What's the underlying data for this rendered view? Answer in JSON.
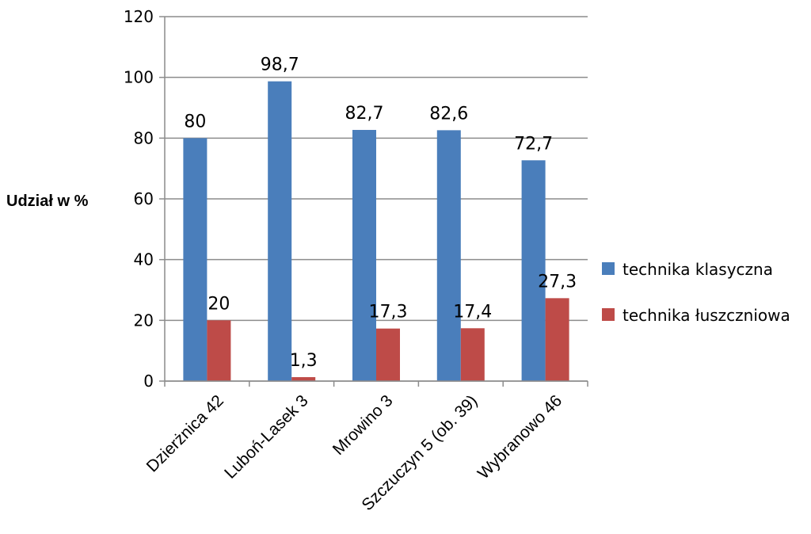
{
  "chart_data": {
    "type": "bar",
    "title": "",
    "xlabel": "",
    "ylabel": "Udział w %",
    "ylim": [
      0,
      120
    ],
    "yticks": [
      0,
      20,
      40,
      60,
      80,
      100,
      120
    ],
    "grid": true,
    "legend_position": "right",
    "categories": [
      "Dzierżnica 42",
      "Luboń-Lasek 3",
      "Mrowino 3",
      "Szczuczyn 5 (ob. 39)",
      "Wybranowo 46"
    ],
    "series": [
      {
        "name": "technika klasyczna",
        "color": "#4a7ebb",
        "values": [
          80,
          98.7,
          82.7,
          82.6,
          72.7
        ],
        "labels": [
          "80",
          "98,7",
          "82,7",
          "82,6",
          "72,7"
        ]
      },
      {
        "name": "technika łuszczniowa",
        "color": "#be4b48",
        "values": [
          20,
          1.3,
          17.3,
          17.4,
          27.3
        ],
        "labels": [
          "20",
          "1,3",
          "17,3",
          "17,4",
          "27,3"
        ]
      }
    ]
  }
}
